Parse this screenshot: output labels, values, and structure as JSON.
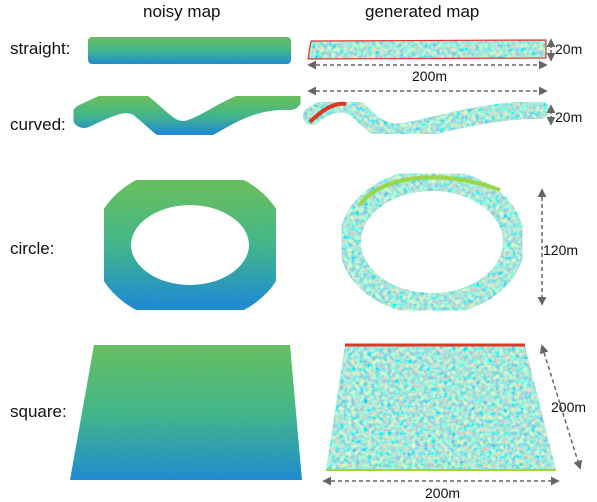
{
  "headers": {
    "noisy": "noisy map",
    "generated": "generated map"
  },
  "rows": [
    {
      "id": "straight",
      "label": "straight:"
    },
    {
      "id": "curved",
      "label": "curved:"
    },
    {
      "id": "circle",
      "label": "circle:"
    },
    {
      "id": "square",
      "label": "square:"
    }
  ],
  "dimensions": {
    "straight_width": "20m",
    "straight_length": "200m",
    "curved_width": "20m",
    "circle_diameter": "120m",
    "square_side_right": "200m",
    "square_side_bottom": "200m"
  },
  "colors": {
    "noisy_base": "#7ed08a",
    "noisy_blue": "#3aa0e6",
    "noisy_green": "#9ad84a",
    "gen_blue": "#3f9fe8",
    "gen_cyan": "#4fd0d8",
    "gen_green": "#9ad64a",
    "gen_yellow": "#e8d23a",
    "gen_red": "#d83a2a",
    "arrow": "#666666"
  }
}
